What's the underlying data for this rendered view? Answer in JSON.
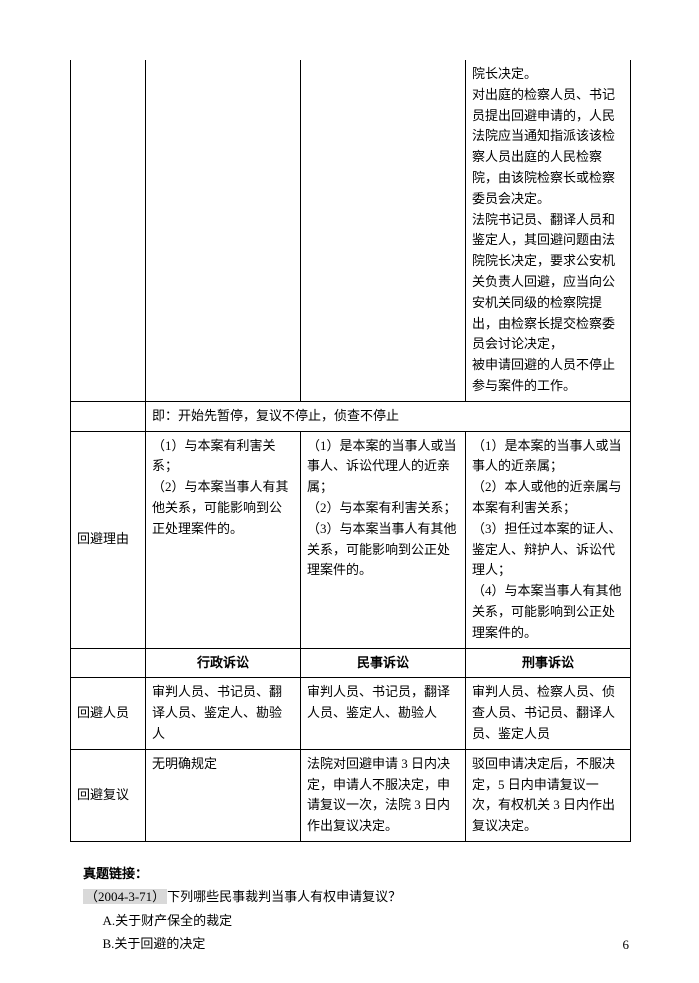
{
  "table": {
    "row1_col4": "院长决定。\n对出庭的检察人员、书记员提出回避申请的，人民法院应当通知指派该该检察人员出庭的人民检察院，由该院检察长或检察委员会决定。\n法院书记员、翻译人员和鉴定人，其回避问题由法院院长决定，要求公安机关负责人回避，应当向公安机关同级的检察院提出，由检察长提交检察委员会讨论决定，\n被申请回避的人员不停止参与案件的工作。",
    "row2_merged": "即：开始先暂停，复议不停止，侦查不停止",
    "reason_label": "回避理由",
    "reason_col2": "（1）与本案有利害关系；\n（2）与本案当事人有其他关系，可能影响到公正处理案件的。",
    "reason_col3": "（1）是本案的当事人或当事人、诉讼代理人的近亲属；\n（2）与本案有利害关系；\n（3）与本案当事人有其他关系，可能影响到公正处理案件的。",
    "reason_col4": "（1）是本案的当事人或当事人的近亲属；\n（2）本人或他的近亲属与本案有利害关系；\n（3）担任过本案的证人、鉴定人、辩护人、诉讼代理人；\n（4）与本案当事人有其他关系，可能影响到公正处理案件的。",
    "header_col2": "行政诉讼",
    "header_col3": "民事诉讼",
    "header_col4": "刑事诉讼",
    "personnel_label": "回避人员",
    "personnel_col2": "审判人员、书记员、翻译人员、鉴定人、勘验人",
    "personnel_col3": "审判人员、书记员，翻译人员、鉴定人、勘验人",
    "personnel_col4": "审判人员、检察人员、侦查人员、书记员、翻译人员、鉴定人员",
    "review_label": "回避复议",
    "review_col2": "无明确规定",
    "review_col3": "法院对回避申请 3 日内决定，申请人不服决定，申请复议一次，法院 3 日内作出复议决定。",
    "review_col4": "驳回申请决定后，不服决定，5 日内申请复议一次，有权机关 3 日内作出复议决定。"
  },
  "bottom": {
    "title": "真题链接：",
    "ref": "（2004-3-71）",
    "question": "下列哪些民事裁判当事人有权申请复议？",
    "option_a": "A.关于财产保全的裁定",
    "option_b": "B.关于回避的决定"
  },
  "page_number": "6"
}
